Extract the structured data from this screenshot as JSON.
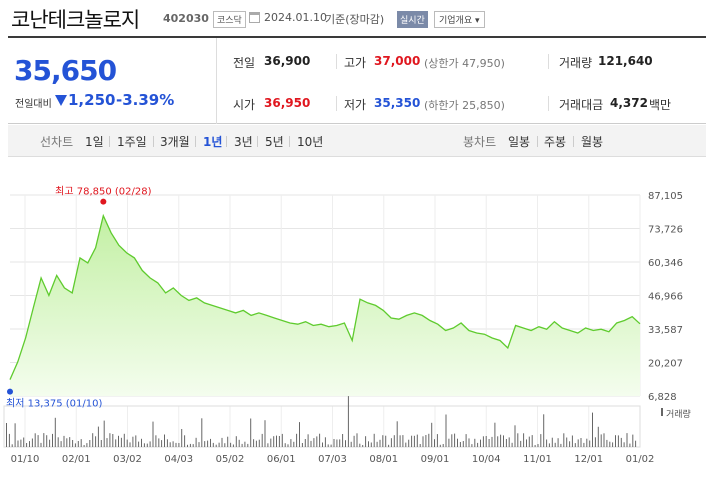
{
  "header": {
    "name": "코난테크놀로지",
    "code": "402030",
    "market": "코스닥",
    "date": "2024.01.10",
    "date_tag": "기준(장마감)",
    "realtime": "실시간",
    "company_info": "기업개요"
  },
  "quote": {
    "price": "35,650",
    "diff_label": "전일대비",
    "diff": "1,250",
    "diff_pct": "-3.39%",
    "prev_close_label": "전일",
    "prev_close": "36,900",
    "high_label": "고가",
    "high": "37,000",
    "upper_limit": "(상한가 47,950)",
    "volume_label": "거래량",
    "volume": "121,640",
    "open_label": "시가",
    "open": "36,950",
    "low_label": "저가",
    "low": "35,350",
    "lower_limit": "(하한가 25,850)",
    "amount_label": "거래대금",
    "amount": "4,372",
    "amount_unit": "백만"
  },
  "periods": {
    "title": "선차트",
    "items": [
      "1일",
      "1주일",
      "3개월",
      "1년",
      "3년",
      "5년",
      "10년"
    ],
    "active": "1년",
    "candle_title": "봉차트",
    "candle_items": [
      "일봉",
      "주봉",
      "월봉"
    ]
  },
  "colors": {
    "line": "#5fcb2e",
    "fill_top": "#c3f0a4",
    "fill_bottom": "#f4fdee",
    "max_marker": "#e0171f",
    "min_marker": "#2453d6",
    "volume_bar": "#666666"
  },
  "chart_data": {
    "type": "area",
    "title": "",
    "xlabel": "",
    "ylabel": "",
    "ylim": [
      6828,
      87105
    ],
    "y_ticks": [
      "87,105",
      "73,726",
      "60,346",
      "46,966",
      "33,587",
      "20,207",
      "6,828"
    ],
    "x_ticks": [
      "01/10",
      "02/01",
      "03/02",
      "04/03",
      "05/02",
      "06/01",
      "07/03",
      "08/01",
      "09/01",
      "10/04",
      "11/01",
      "12/01",
      "01/02"
    ],
    "grid": true,
    "x": [
      "01/10",
      "01/13",
      "01/18",
      "01/23",
      "01/28",
      "02/01",
      "02/06",
      "02/10",
      "02/15",
      "02/18",
      "02/22",
      "02/26",
      "02/28",
      "03/03",
      "03/07",
      "03/11",
      "03/16",
      "03/21",
      "03/25",
      "03/29",
      "04/03",
      "04/08",
      "04/13",
      "04/18",
      "04/22",
      "04/27",
      "05/02",
      "05/07",
      "05/12",
      "05/17",
      "05/22",
      "05/27",
      "06/01",
      "06/06",
      "06/11",
      "06/16",
      "06/21",
      "06/26",
      "07/01",
      "07/05",
      "07/10",
      "07/15",
      "07/20",
      "07/23",
      "07/27",
      "08/01",
      "08/04",
      "08/07",
      "08/11",
      "08/16",
      "08/21",
      "08/26",
      "08/31",
      "09/05",
      "09/10",
      "09/15",
      "09/20",
      "09/25",
      "09/30",
      "10/05",
      "10/10",
      "10/15",
      "10/20",
      "10/25",
      "10/30",
      "11/03",
      "11/06",
      "11/10",
      "11/15",
      "11/20",
      "11/25",
      "11/30",
      "12/05",
      "12/10",
      "12/15",
      "12/20",
      "12/25",
      "12/30",
      "01/02",
      "01/05",
      "01/08",
      "01/10"
    ],
    "series": [
      {
        "values": [
          13375,
          20500,
          30000,
          42000,
          54000,
          47000,
          55000,
          50000,
          48000,
          62000,
          60000,
          66000,
          78850,
          72000,
          67000,
          64000,
          62000,
          57000,
          54000,
          52000,
          48000,
          50000,
          47000,
          45000,
          46000,
          44000,
          43000,
          42000,
          41000,
          40000,
          41000,
          39000,
          40000,
          39000,
          38000,
          37000,
          36000,
          35500,
          36500,
          35000,
          35500,
          34500,
          35000,
          36000,
          29000,
          45500,
          44000,
          43000,
          41000,
          38000,
          37500,
          39000,
          40000,
          39000,
          37000,
          35500,
          33000,
          34000,
          36000,
          33000,
          32000,
          31500,
          30000,
          29000,
          26000,
          35000,
          34000,
          33000,
          34500,
          33500,
          36500,
          34000,
          33000,
          32000,
          34000,
          33000,
          33500,
          32500,
          36000,
          37000,
          38500,
          35650
        ]
      }
    ],
    "max_label": "최고 78,850 (02/28)",
    "min_label": "최저 13,375 (01/10)",
    "volume_legend": "거래량"
  }
}
